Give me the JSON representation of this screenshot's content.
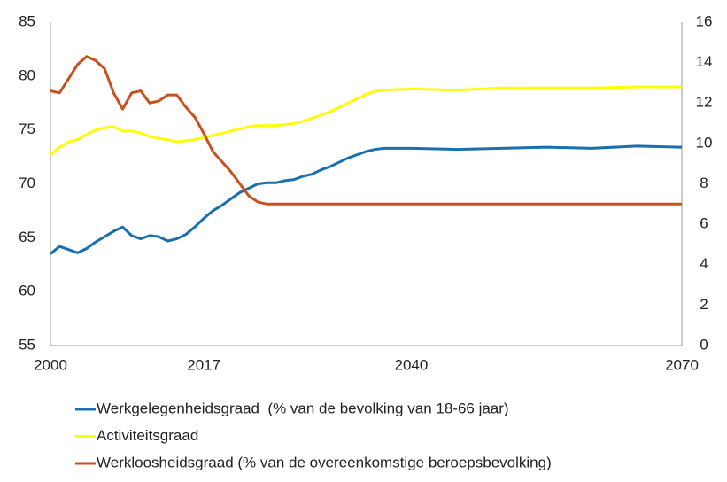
{
  "chart_data": {
    "type": "line",
    "x": [
      2000,
      2001,
      2002,
      2003,
      2004,
      2005,
      2006,
      2007,
      2008,
      2009,
      2010,
      2011,
      2012,
      2013,
      2014,
      2015,
      2016,
      2017,
      2018,
      2019,
      2020,
      2021,
      2022,
      2023,
      2024,
      2025,
      2026,
      2027,
      2028,
      2029,
      2030,
      2031,
      2032,
      2033,
      2034,
      2035,
      2036,
      2037,
      2040,
      2045,
      2050,
      2055,
      2060,
      2065,
      2070
    ],
    "series": [
      {
        "name": "Werkgelegenheidsgraad  (% van de bevolking van 18-66 jaar)",
        "color": "#1a6faf",
        "values": [
          63.5,
          64.2,
          63.9,
          63.6,
          64.0,
          64.6,
          65.1,
          65.6,
          66.0,
          65.2,
          64.9,
          65.2,
          65.1,
          64.7,
          64.9,
          65.3,
          66.0,
          66.8,
          67.5,
          68.0,
          68.6,
          69.2,
          69.6,
          70.0,
          70.1,
          70.1,
          70.3,
          70.4,
          70.7,
          70.9,
          71.3,
          71.6,
          72.0,
          72.4,
          72.7,
          73.0,
          73.2,
          73.3,
          73.3,
          73.2,
          73.3,
          73.4,
          73.3,
          73.5,
          73.4
        ]
      },
      {
        "name": "Activiteitsgraad",
        "color": "#ffff00",
        "values": [
          72.7,
          73.4,
          73.9,
          74.1,
          74.6,
          75.0,
          75.2,
          75.3,
          74.9,
          74.9,
          74.7,
          74.4,
          74.2,
          74.1,
          73.9,
          74.0,
          74.1,
          74.3,
          74.5,
          74.7,
          74.9,
          75.1,
          75.3,
          75.4,
          75.4,
          75.4,
          75.5,
          75.6,
          75.8,
          76.1,
          76.4,
          76.7,
          77.1,
          77.5,
          77.9,
          78.3,
          78.6,
          78.7,
          78.8,
          78.7,
          78.9,
          78.9,
          78.9,
          79.0,
          79.0
        ]
      },
      {
        "name": "Werkloosheidsgraad (% van de overeenkomstige beroepsbevolking)",
        "color": "#c9511d",
        "axis": "y2",
        "values": [
          12.6,
          12.5,
          13.2,
          13.9,
          14.3,
          14.1,
          13.7,
          12.5,
          11.7,
          12.5,
          12.6,
          12.0,
          12.1,
          12.4,
          12.4,
          11.8,
          11.3,
          10.5,
          9.6,
          9.1,
          8.6,
          8.0,
          7.4,
          7.1,
          7.0,
          7.0,
          7.0,
          7.0,
          7.0,
          7.0,
          7.0,
          7.0,
          7.0,
          7.0,
          7.0,
          7.0,
          7.0,
          7.0,
          7.0,
          7.0,
          7.0,
          7.0,
          7.0,
          7.0,
          7.0
        ]
      }
    ],
    "xlim": [
      2000,
      2070
    ],
    "xticks": [
      2000,
      2017,
      2040,
      2070
    ],
    "ylim": [
      55,
      85
    ],
    "yticks": [
      55,
      60,
      65,
      70,
      75,
      80,
      85
    ],
    "y2lim": [
      0,
      16
    ],
    "y2ticks": [
      0,
      2,
      4,
      6,
      8,
      10,
      12,
      14,
      16
    ],
    "grid": false,
    "legend": "bottom"
  }
}
